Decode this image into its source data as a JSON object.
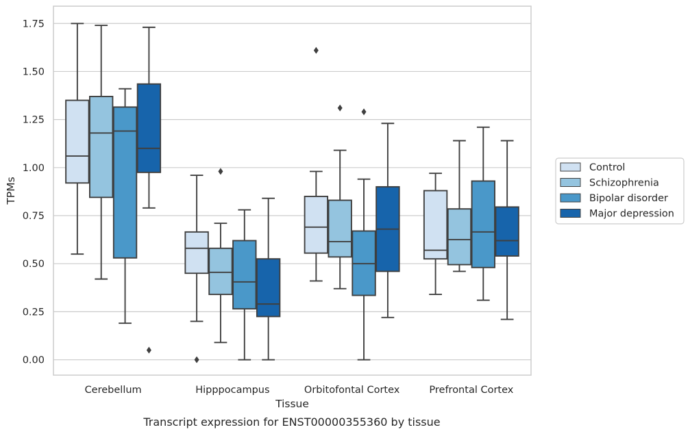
{
  "caption": "Transcript expression for ENST00000355360 by tissue",
  "chart_data": {
    "type": "box",
    "xlabel": "Tissue",
    "ylabel": "TPMs",
    "ylim": [
      -0.08,
      1.84
    ],
    "yticks": [
      "0.00",
      "0.25",
      "0.50",
      "0.75",
      "1.00",
      "1.25",
      "1.50",
      "1.75"
    ],
    "grid": "horizontal",
    "legend_position": "right",
    "categories": [
      "Cerebellum",
      "Hipppocampus",
      "Orbitofontal Cortex",
      "Prefrontal Cortex"
    ],
    "series": [
      {
        "name": "Control",
        "color": "#d0e1f2",
        "boxes": [
          {
            "whislo": 0.55,
            "q1": 0.92,
            "med": 1.06,
            "q3": 1.35,
            "whishi": 1.75,
            "fliers": []
          },
          {
            "whislo": 0.2,
            "q1": 0.45,
            "med": 0.58,
            "q3": 0.665,
            "whishi": 0.96,
            "fliers": [
              0.0
            ]
          },
          {
            "whislo": 0.41,
            "q1": 0.555,
            "med": 0.69,
            "q3": 0.85,
            "whishi": 0.98,
            "fliers": [
              1.61
            ]
          },
          {
            "whislo": 0.34,
            "q1": 0.525,
            "med": 0.57,
            "q3": 0.88,
            "whishi": 0.97,
            "fliers": []
          }
        ]
      },
      {
        "name": "Schizophrenia",
        "color": "#94c4df",
        "boxes": [
          {
            "whislo": 0.42,
            "q1": 0.845,
            "med": 1.18,
            "q3": 1.37,
            "whishi": 1.74,
            "fliers": []
          },
          {
            "whislo": 0.09,
            "q1": 0.34,
            "med": 0.455,
            "q3": 0.58,
            "whishi": 0.71,
            "fliers": [
              0.98
            ]
          },
          {
            "whislo": 0.37,
            "q1": 0.535,
            "med": 0.615,
            "q3": 0.83,
            "whishi": 1.09,
            "fliers": [
              1.31
            ]
          },
          {
            "whislo": 0.46,
            "q1": 0.495,
            "med": 0.625,
            "q3": 0.785,
            "whishi": 1.14,
            "fliers": []
          }
        ]
      },
      {
        "name": "Bipolar disorder",
        "color": "#4a98c9",
        "boxes": [
          {
            "whislo": 0.19,
            "q1": 0.53,
            "med": 1.19,
            "q3": 1.315,
            "whishi": 1.41,
            "fliers": []
          },
          {
            "whislo": 0.0,
            "q1": 0.265,
            "med": 0.405,
            "q3": 0.62,
            "whishi": 0.78,
            "fliers": []
          },
          {
            "whislo": 0.0,
            "q1": 0.335,
            "med": 0.5,
            "q3": 0.67,
            "whishi": 0.94,
            "fliers": [
              1.29
            ]
          },
          {
            "whislo": 0.31,
            "q1": 0.48,
            "med": 0.665,
            "q3": 0.93,
            "whishi": 1.21,
            "fliers": []
          }
        ]
      },
      {
        "name": "Major depression",
        "color": "#1764ab",
        "boxes": [
          {
            "whislo": 0.79,
            "q1": 0.975,
            "med": 1.1,
            "q3": 1.435,
            "whishi": 1.73,
            "fliers": [
              0.05
            ]
          },
          {
            "whislo": 0.0,
            "q1": 0.225,
            "med": 0.29,
            "q3": 0.525,
            "whishi": 0.84,
            "fliers": []
          },
          {
            "whislo": 0.22,
            "q1": 0.46,
            "med": 0.68,
            "q3": 0.9,
            "whishi": 1.23,
            "fliers": []
          },
          {
            "whislo": 0.21,
            "q1": 0.54,
            "med": 0.62,
            "q3": 0.795,
            "whishi": 1.14,
            "fliers": []
          }
        ]
      }
    ]
  }
}
